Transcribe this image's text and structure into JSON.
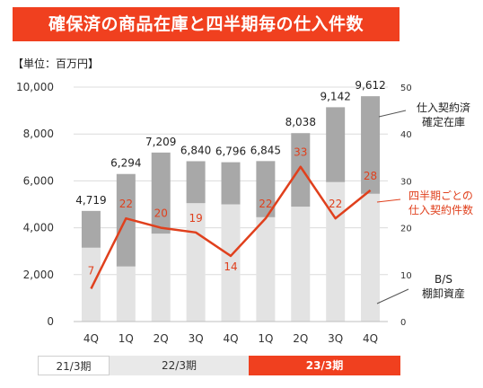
{
  "header": {
    "title": "確保済の商品在庫と四半期毎の仕入件数",
    "unit": "【単位：百万円】"
  },
  "chart_data": {
    "type": "bar",
    "categories": [
      "4Q",
      "1Q",
      "2Q",
      "3Q",
      "4Q",
      "1Q",
      "2Q",
      "3Q",
      "4Q"
    ],
    "series": [
      {
        "name": "B/S 棚卸資産",
        "values": [
          3150,
          2350,
          3750,
          5050,
          5000,
          4450,
          4900,
          5950,
          5450
        ],
        "color": "#e3e3e3"
      },
      {
        "name": "仕入契約済 確定在庫",
        "values": [
          1569,
          3944,
          3459,
          1790,
          1796,
          2395,
          3138,
          3192,
          4162
        ],
        "color": "#a8a8a8"
      },
      {
        "name": "四半期ごとの 仕入契約件数",
        "values": [
          7,
          22,
          20,
          19,
          14,
          22,
          33,
          22,
          28
        ],
        "color": "#e0401d",
        "axis": "right"
      }
    ],
    "totals": [
      4719,
      6294,
      7209,
      6840,
      6796,
      6845,
      8038,
      9142,
      9612
    ],
    "total_labels": [
      "4,719",
      "6,294",
      "7,209",
      "6,840",
      "6,796",
      "6,845",
      "8,038",
      "9,142",
      "9,612"
    ],
    "y_left": {
      "ticks": [
        "0",
        "2,000",
        "4,000",
        "6,000",
        "8,000",
        "10,000"
      ],
      "min": 0,
      "max": 10000
    },
    "y_right": {
      "ticks": [
        "0",
        "10",
        "20",
        "30",
        "40",
        "50"
      ],
      "min": 0,
      "max": 50
    },
    "periods": [
      "21/3期",
      "22/3期",
      "23/3期"
    ],
    "legend": {
      "stock_line1": "仕入契約済",
      "stock_line2": "確定在庫",
      "count_line1": "四半期ごとの",
      "count_line2": "仕入契約件数",
      "bs_line1": "B/S",
      "bs_line2": "棚卸資産"
    },
    "grid": true
  }
}
